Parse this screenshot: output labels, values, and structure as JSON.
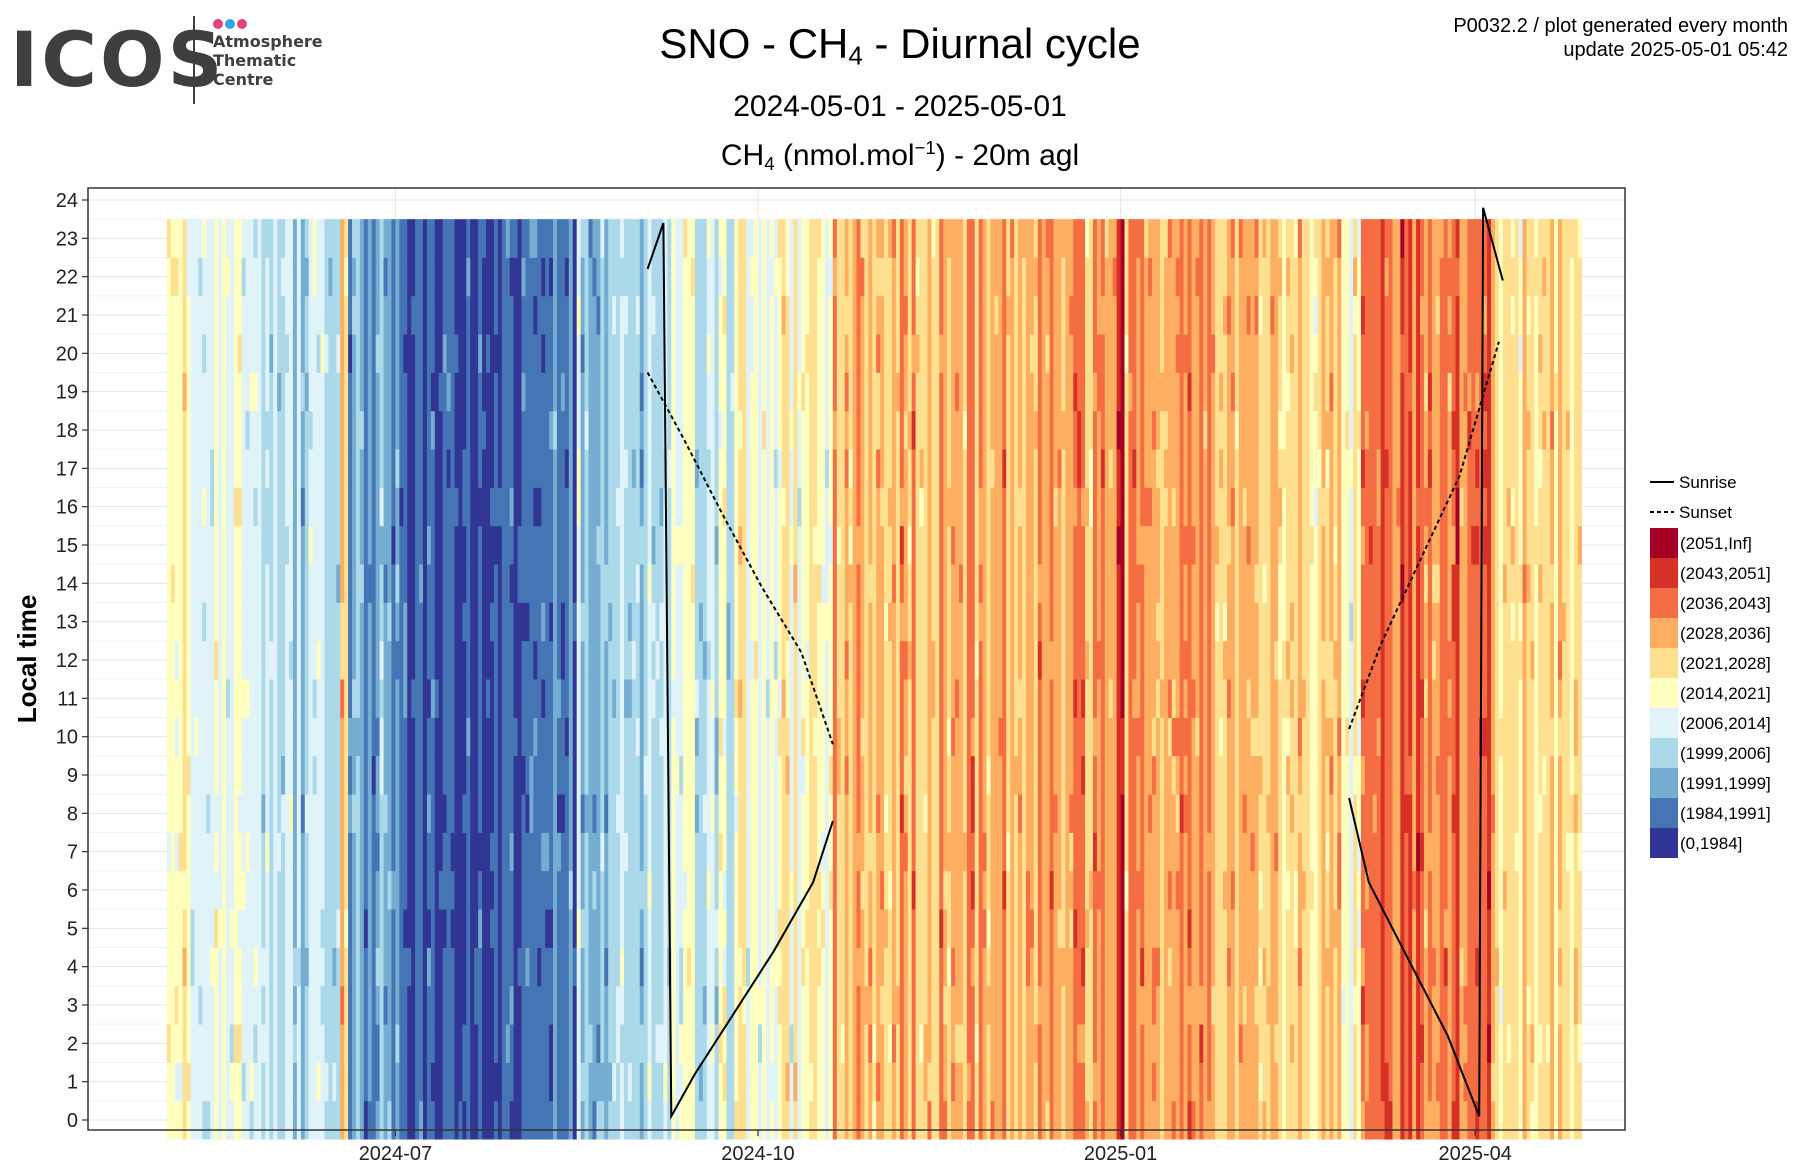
{
  "logo": {
    "word": "ICOS",
    "lines": [
      "Atmosphere",
      "Thematic",
      "Centre"
    ],
    "dot_colors": [
      "#e3427b",
      "#33a5e3",
      "#e3427b"
    ]
  },
  "header": {
    "title_prefix": "SNO - CH",
    "title_sub": "4",
    "title_suffix": " - Diurnal cycle",
    "date_range": "2024-05-01 - 2025-05-01",
    "unit_prefix": "CH",
    "unit_sub": "4",
    "unit_mid": " (nmol.mol",
    "unit_sup": "−1",
    "unit_suffix": ") - 20m agl",
    "plot_id": "P0032.2 / plot generated every month",
    "update": "update  2025-05-01 05:42"
  },
  "chart_data": {
    "type": "heatmap",
    "x_range": [
      "2024-05-01",
      "2025-05-01"
    ],
    "x_ticks": [
      "2024-07",
      "2024-10",
      "2025-01",
      "2025-04"
    ],
    "x_tick_dates": [
      "2024-07-01",
      "2024-10-01",
      "2025-01-01",
      "2025-04-01"
    ],
    "ylabel": "Local time",
    "ylim": [
      0,
      24
    ],
    "y_ticks": [
      0,
      1,
      2,
      3,
      4,
      5,
      6,
      7,
      8,
      9,
      10,
      11,
      12,
      13,
      14,
      15,
      16,
      17,
      18,
      19,
      20,
      21,
      22,
      23,
      24
    ],
    "grid": true,
    "legend_position": "right",
    "color_bins": [
      {
        "label": "(2051,Inf]",
        "color": "#a50026"
      },
      {
        "label": "(2043,2051]",
        "color": "#d73027"
      },
      {
        "label": "(2036,2043]",
        "color": "#f46d43"
      },
      {
        "label": "(2028,2036]",
        "color": "#fdae61"
      },
      {
        "label": "(2021,2028]",
        "color": "#fee090"
      },
      {
        "label": "(2014,2021]",
        "color": "#ffffbf"
      },
      {
        "label": "(2006,2014]",
        "color": "#e0f3f8"
      },
      {
        "label": "(1999,2006]",
        "color": "#abd9e9"
      },
      {
        "label": "(1991,1999]",
        "color": "#74add1"
      },
      {
        "label": "(1984,1991]",
        "color": "#4575b4"
      },
      {
        "label": "(0,1984]",
        "color": "#313695"
      }
    ],
    "dominant_bin_by_period": [
      {
        "start": "2024-05-04",
        "end": "2024-05-10",
        "bin": 5
      },
      {
        "start": "2024-05-10",
        "end": "2024-05-28",
        "bin": 6
      },
      {
        "start": "2024-05-28",
        "end": "2024-06-17",
        "bin": 7
      },
      {
        "start": "2024-06-17",
        "end": "2024-06-19",
        "bin": 4
      },
      {
        "start": "2024-06-19",
        "end": "2024-06-30",
        "bin": 8
      },
      {
        "start": "2024-06-30",
        "end": "2024-07-08",
        "bin": 9
      },
      {
        "start": "2024-07-08",
        "end": "2024-07-28",
        "bin": 10
      },
      {
        "start": "2024-07-28",
        "end": "2024-08-16",
        "bin": 9
      },
      {
        "start": "2024-08-16",
        "end": "2024-09-09",
        "bin": 7
      },
      {
        "start": "2024-09-09",
        "end": "2024-09-25",
        "bin": 6
      },
      {
        "start": "2024-09-25",
        "end": "2024-10-20",
        "bin": 5
      },
      {
        "start": "2024-10-20",
        "end": "2024-11-20",
        "bin": 3
      },
      {
        "start": "2024-11-20",
        "end": "2024-12-31",
        "bin": 3
      },
      {
        "start": "2024-12-31",
        "end": "2025-01-02",
        "bin": 0
      },
      {
        "start": "2025-01-02",
        "end": "2025-02-05",
        "bin": 3
      },
      {
        "start": "2025-02-05",
        "end": "2025-02-26",
        "bin": 4
      },
      {
        "start": "2025-02-26",
        "end": "2025-03-03",
        "bin": 5
      },
      {
        "start": "2025-03-03",
        "end": "2025-04-06",
        "bin": 2
      },
      {
        "start": "2025-04-06",
        "end": "2025-04-28",
        "bin": 4
      }
    ],
    "series": [
      {
        "name": "Sunrise",
        "linestyle": "solid",
        "segments": [
          {
            "x": [
              "2024-09-03",
              "2024-09-07"
            ],
            "y": [
              22.2,
              23.4
            ]
          },
          {
            "x": [
              "2024-09-07",
              "2024-09-09",
              "2024-09-15",
              "2024-09-25",
              "2024-10-05",
              "2024-10-15",
              "2024-10-20"
            ],
            "y": [
              23.4,
              0.1,
              1.2,
              2.8,
              4.4,
              6.2,
              7.8
            ]
          },
          {
            "x": [
              "2025-02-28",
              "2025-03-05",
              "2025-03-15",
              "2025-03-25",
              "2025-04-02"
            ],
            "y": [
              8.4,
              6.2,
              4.2,
              2.2,
              0.1
            ]
          },
          {
            "x": [
              "2025-04-02",
              "2025-04-03",
              "2025-04-08"
            ],
            "y": [
              0.1,
              23.8,
              21.9
            ]
          }
        ]
      },
      {
        "name": "Sunset",
        "linestyle": "dashed",
        "segments": [
          {
            "x": [
              "2024-09-03",
              "2024-09-12",
              "2024-09-22",
              "2024-10-02",
              "2024-10-12",
              "2024-10-20"
            ],
            "y": [
              19.5,
              17.8,
              15.8,
              13.9,
              12.2,
              9.8
            ]
          },
          {
            "x": [
              "2025-02-28",
              "2025-03-08",
              "2025-03-18",
              "2025-03-28",
              "2025-04-07"
            ],
            "y": [
              10.2,
              12.4,
              14.6,
              16.8,
              20.3
            ]
          }
        ]
      }
    ]
  }
}
